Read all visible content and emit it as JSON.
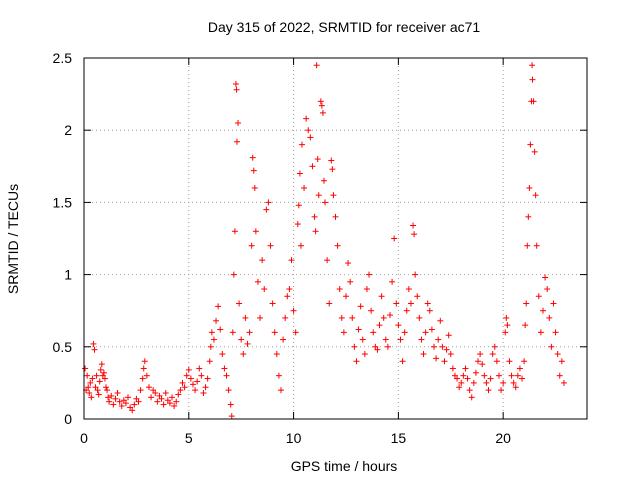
{
  "chart_data": {
    "type": "scatter",
    "title": "Day 315 of 2022, SRMTID for receiver ac71",
    "xlabel": "GPS time / hours",
    "ylabel": "SRMTID / TECUs",
    "xlim": [
      0,
      24
    ],
    "ylim": [
      0,
      2.5
    ],
    "xticks": [
      0,
      5,
      10,
      15,
      20
    ],
    "xtick_labels": [
      "0",
      "5",
      "10",
      "15",
      "20"
    ],
    "yticks": [
      0,
      0.5,
      1,
      1.5,
      2,
      2.5
    ],
    "ytick_labels": [
      "0",
      "0.5",
      "1",
      "1.5",
      "2",
      "2.5"
    ],
    "grid": true,
    "marker": "+",
    "marker_color": "#ff0000",
    "series": [
      {
        "name": "SRMTID",
        "points": [
          [
            0.05,
            0.35
          ],
          [
            0.1,
            0.2
          ],
          [
            0.15,
            0.3
          ],
          [
            0.2,
            0.22
          ],
          [
            0.25,
            0.18
          ],
          [
            0.3,
            0.25
          ],
          [
            0.35,
            0.15
          ],
          [
            0.4,
            0.28
          ],
          [
            0.45,
            0.52
          ],
          [
            0.5,
            0.48
          ],
          [
            0.55,
            0.22
          ],
          [
            0.6,
            0.3
          ],
          [
            0.65,
            0.2
          ],
          [
            0.7,
            0.17
          ],
          [
            0.75,
            0.26
          ],
          [
            0.8,
            0.34
          ],
          [
            0.85,
            0.38
          ],
          [
            0.9,
            0.3
          ],
          [
            0.95,
            0.32
          ],
          [
            1.0,
            0.28
          ],
          [
            1.05,
            0.22
          ],
          [
            1.1,
            0.2
          ],
          [
            1.15,
            0.15
          ],
          [
            1.2,
            0.12
          ],
          [
            1.3,
            0.16
          ],
          [
            1.4,
            0.1
          ],
          [
            1.5,
            0.14
          ],
          [
            1.6,
            0.18
          ],
          [
            1.7,
            0.12
          ],
          [
            1.8,
            0.09
          ],
          [
            1.9,
            0.13
          ],
          [
            2.0,
            0.11
          ],
          [
            2.1,
            0.15
          ],
          [
            2.2,
            0.08
          ],
          [
            2.3,
            0.06
          ],
          [
            2.4,
            0.1
          ],
          [
            2.5,
            0.14
          ],
          [
            2.6,
            0.12
          ],
          [
            2.7,
            0.2
          ],
          [
            2.8,
            0.28
          ],
          [
            2.85,
            0.35
          ],
          [
            2.9,
            0.4
          ],
          [
            3.0,
            0.3
          ],
          [
            3.1,
            0.22
          ],
          [
            3.2,
            0.15
          ],
          [
            3.3,
            0.2
          ],
          [
            3.4,
            0.18
          ],
          [
            3.5,
            0.12
          ],
          [
            3.6,
            0.16
          ],
          [
            3.7,
            0.14
          ],
          [
            3.8,
            0.1
          ],
          [
            3.9,
            0.18
          ],
          [
            4.0,
            0.13
          ],
          [
            4.1,
            0.11
          ],
          [
            4.2,
            0.15
          ],
          [
            4.3,
            0.09
          ],
          [
            4.4,
            0.12
          ],
          [
            4.5,
            0.17
          ],
          [
            4.6,
            0.2
          ],
          [
            4.7,
            0.25
          ],
          [
            4.8,
            0.22
          ],
          [
            4.9,
            0.3
          ],
          [
            5.0,
            0.34
          ],
          [
            5.1,
            0.28
          ],
          [
            5.2,
            0.24
          ],
          [
            5.3,
            0.2
          ],
          [
            5.4,
            0.26
          ],
          [
            5.5,
            0.35
          ],
          [
            5.6,
            0.3
          ],
          [
            5.7,
            0.18
          ],
          [
            5.8,
            0.22
          ],
          [
            5.9,
            0.28
          ],
          [
            6.0,
            0.4
          ],
          [
            6.05,
            0.5
          ],
          [
            6.1,
            0.6
          ],
          [
            6.2,
            0.55
          ],
          [
            6.3,
            0.68
          ],
          [
            6.4,
            0.78
          ],
          [
            6.5,
            0.62
          ],
          [
            6.6,
            0.45
          ],
          [
            6.7,
            0.35
          ],
          [
            6.8,
            0.3
          ],
          [
            6.9,
            0.2
          ],
          [
            7.0,
            0.1
          ],
          [
            7.05,
            0.02
          ],
          [
            7.1,
            0.6
          ],
          [
            7.15,
            1.0
          ],
          [
            7.2,
            1.3
          ],
          [
            7.25,
            2.32
          ],
          [
            7.28,
            2.28
          ],
          [
            7.3,
            1.92
          ],
          [
            7.35,
            2.05
          ],
          [
            7.4,
            0.8
          ],
          [
            7.5,
            0.55
          ],
          [
            7.6,
            0.45
          ],
          [
            7.7,
            0.7
          ],
          [
            7.8,
            0.52
          ],
          [
            7.9,
            0.6
          ],
          [
            8.0,
            1.2
          ],
          [
            8.05,
            1.81
          ],
          [
            8.1,
            1.72
          ],
          [
            8.15,
            1.6
          ],
          [
            8.2,
            1.3
          ],
          [
            8.3,
            0.95
          ],
          [
            8.4,
            0.7
          ],
          [
            8.5,
            1.1
          ],
          [
            8.6,
            0.9
          ],
          [
            8.7,
            1.45
          ],
          [
            8.8,
            1.5
          ],
          [
            8.9,
            1.2
          ],
          [
            9.0,
            0.8
          ],
          [
            9.1,
            0.6
          ],
          [
            9.2,
            0.45
          ],
          [
            9.3,
            0.3
          ],
          [
            9.4,
            0.2
          ],
          [
            9.5,
            0.55
          ],
          [
            9.6,
            0.7
          ],
          [
            9.7,
            0.85
          ],
          [
            9.8,
            0.9
          ],
          [
            9.9,
            1.1
          ],
          [
            10.0,
            0.75
          ],
          [
            10.1,
            0.6
          ],
          [
            10.2,
            1.35
          ],
          [
            10.25,
            1.48
          ],
          [
            10.3,
            1.7
          ],
          [
            10.35,
            1.2
          ],
          [
            10.4,
            1.9
          ],
          [
            10.5,
            1.6
          ],
          [
            10.6,
            2.08
          ],
          [
            10.7,
            2.0
          ],
          [
            10.8,
            1.95
          ],
          [
            10.9,
            1.75
          ],
          [
            11.0,
            1.4
          ],
          [
            11.05,
            1.3
          ],
          [
            11.1,
            2.45
          ],
          [
            11.15,
            1.8
          ],
          [
            11.2,
            1.55
          ],
          [
            11.3,
            2.2
          ],
          [
            11.35,
            2.17
          ],
          [
            11.4,
            2.12
          ],
          [
            11.45,
            1.65
          ],
          [
            11.5,
            1.5
          ],
          [
            11.6,
            1.1
          ],
          [
            11.7,
            0.8
          ],
          [
            11.8,
            1.79
          ],
          [
            11.85,
            1.73
          ],
          [
            11.9,
            1.55
          ],
          [
            12.0,
            1.4
          ],
          [
            12.1,
            1.2
          ],
          [
            12.2,
            0.9
          ],
          [
            12.3,
            0.7
          ],
          [
            12.4,
            0.6
          ],
          [
            12.5,
            0.85
          ],
          [
            12.6,
            1.08
          ],
          [
            12.7,
            0.95
          ],
          [
            12.8,
            0.7
          ],
          [
            12.9,
            0.5
          ],
          [
            13.0,
            0.4
          ],
          [
            13.1,
            0.62
          ],
          [
            13.2,
            0.78
          ],
          [
            13.3,
            0.55
          ],
          [
            13.4,
            0.45
          ],
          [
            13.5,
            0.9
          ],
          [
            13.6,
            1.0
          ],
          [
            13.7,
            0.75
          ],
          [
            13.8,
            0.6
          ],
          [
            13.9,
            0.5
          ],
          [
            14.0,
            0.48
          ],
          [
            14.1,
            0.65
          ],
          [
            14.2,
            0.85
          ],
          [
            14.3,
            0.7
          ],
          [
            14.4,
            0.55
          ],
          [
            14.5,
            0.5
          ],
          [
            14.6,
            0.72
          ],
          [
            14.7,
            0.95
          ],
          [
            14.8,
            1.25
          ],
          [
            14.9,
            0.8
          ],
          [
            15.0,
            0.65
          ],
          [
            15.1,
            0.55
          ],
          [
            15.2,
            0.4
          ],
          [
            15.3,
            0.6
          ],
          [
            15.4,
            0.75
          ],
          [
            15.5,
            0.9
          ],
          [
            15.6,
            0.8
          ],
          [
            15.7,
            1.34
          ],
          [
            15.75,
            1.28
          ],
          [
            15.8,
            1.0
          ],
          [
            15.9,
            0.85
          ],
          [
            16.0,
            0.7
          ],
          [
            16.1,
            0.55
          ],
          [
            16.2,
            0.45
          ],
          [
            16.3,
            0.6
          ],
          [
            16.4,
            0.8
          ],
          [
            16.5,
            0.75
          ],
          [
            16.6,
            0.62
          ],
          [
            16.7,
            0.5
          ],
          [
            16.8,
            0.42
          ],
          [
            16.9,
            0.55
          ],
          [
            17.0,
            0.68
          ],
          [
            17.1,
            0.5
          ],
          [
            17.2,
            0.4
          ],
          [
            17.3,
            0.48
          ],
          [
            17.4,
            0.58
          ],
          [
            17.5,
            0.45
          ],
          [
            17.6,
            0.35
          ],
          [
            17.7,
            0.3
          ],
          [
            17.8,
            0.28
          ],
          [
            17.9,
            0.22
          ],
          [
            18.0,
            0.25
          ],
          [
            18.1,
            0.3
          ],
          [
            18.2,
            0.35
          ],
          [
            18.3,
            0.28
          ],
          [
            18.4,
            0.2
          ],
          [
            18.5,
            0.15
          ],
          [
            18.6,
            0.25
          ],
          [
            18.7,
            0.32
          ],
          [
            18.8,
            0.4
          ],
          [
            18.9,
            0.45
          ],
          [
            19.0,
            0.38
          ],
          [
            19.1,
            0.3
          ],
          [
            19.2,
            0.25
          ],
          [
            19.3,
            0.2
          ],
          [
            19.4,
            0.28
          ],
          [
            19.5,
            0.45
          ],
          [
            19.6,
            0.5
          ],
          [
            19.7,
            0.4
          ],
          [
            19.8,
            0.3
          ],
          [
            19.9,
            0.2
          ],
          [
            20.0,
            0.25
          ],
          [
            20.1,
            0.6
          ],
          [
            20.15,
            0.7
          ],
          [
            20.2,
            0.65
          ],
          [
            20.3,
            0.4
          ],
          [
            20.4,
            0.3
          ],
          [
            20.5,
            0.25
          ],
          [
            20.6,
            0.22
          ],
          [
            20.7,
            0.3
          ],
          [
            20.8,
            0.35
          ],
          [
            20.9,
            0.28
          ],
          [
            21.0,
            0.4
          ],
          [
            21.05,
            0.65
          ],
          [
            21.1,
            0.8
          ],
          [
            21.15,
            1.2
          ],
          [
            21.2,
            1.4
          ],
          [
            21.25,
            1.6
          ],
          [
            21.3,
            1.9
          ],
          [
            21.35,
            2.2
          ],
          [
            21.38,
            2.45
          ],
          [
            21.4,
            2.35
          ],
          [
            21.45,
            2.2
          ],
          [
            21.5,
            1.85
          ],
          [
            21.55,
            1.55
          ],
          [
            21.6,
            1.2
          ],
          [
            21.7,
            0.85
          ],
          [
            21.8,
            0.6
          ],
          [
            21.9,
            0.75
          ],
          [
            22.0,
            0.98
          ],
          [
            22.1,
            0.9
          ],
          [
            22.2,
            0.7
          ],
          [
            22.3,
            0.5
          ],
          [
            22.4,
            0.8
          ],
          [
            22.5,
            0.6
          ],
          [
            22.6,
            0.45
          ],
          [
            22.7,
            0.3
          ],
          [
            22.8,
            0.4
          ],
          [
            22.9,
            0.25
          ]
        ]
      }
    ]
  }
}
